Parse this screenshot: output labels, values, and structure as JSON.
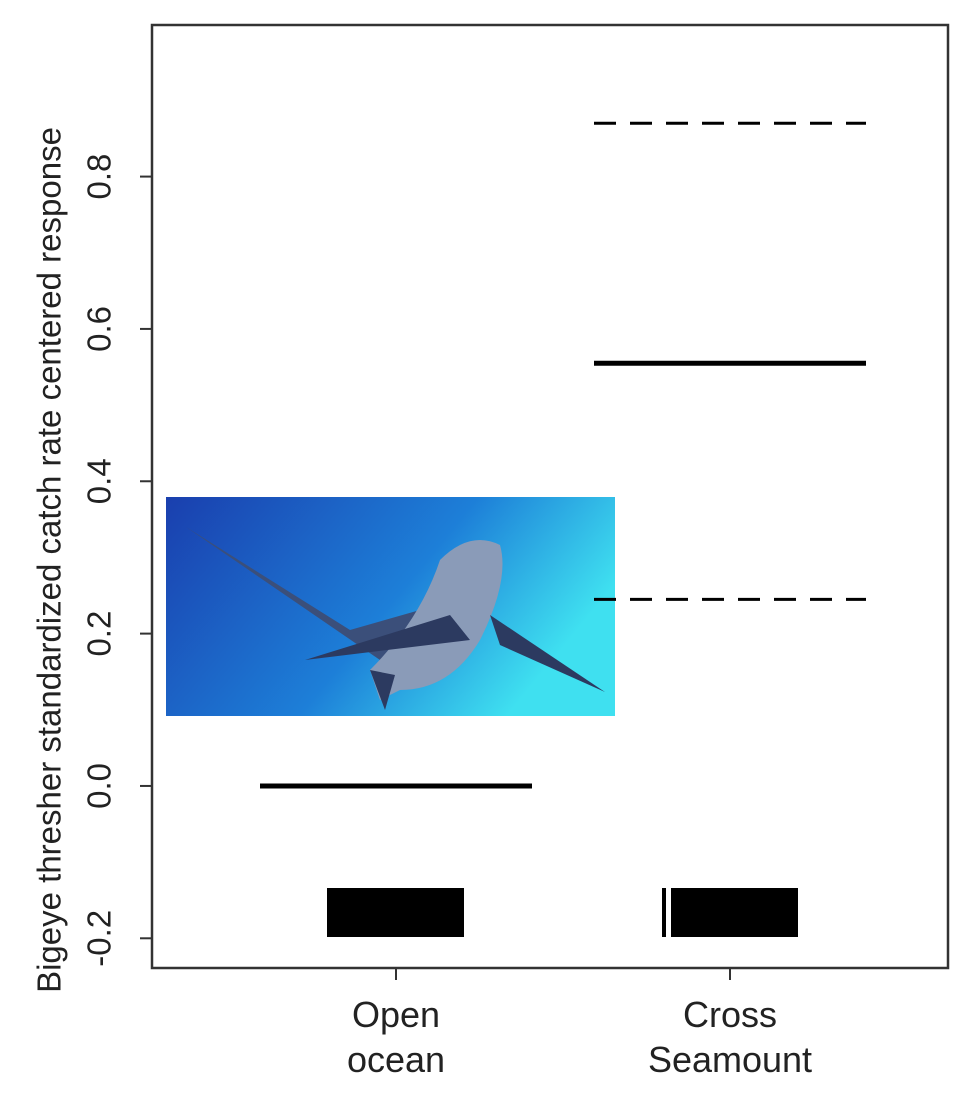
{
  "chart_data": {
    "type": "effect",
    "ylabel": "Bigeye thresher  standardized catch rate centered response",
    "categories": [
      "Open ocean",
      "Cross Seamount"
    ],
    "values": [
      0.0,
      0.555
    ],
    "upper": [
      null,
      0.87
    ],
    "lower": [
      null,
      0.245
    ],
    "color": "#000000",
    "ylim": [
      -0.239,
      0.999
    ],
    "yticks": [
      {
        "value": -0.2,
        "label": "-0.2"
      },
      {
        "value": 0,
        "label": "0.0"
      },
      {
        "value": 0.2,
        "label": "0.2"
      },
      {
        "value": 0.4,
        "label": "0.4"
      },
      {
        "value": 0.6,
        "label": "0.6"
      },
      {
        "value": 0.8,
        "label": "0.8"
      }
    ]
  }
}
